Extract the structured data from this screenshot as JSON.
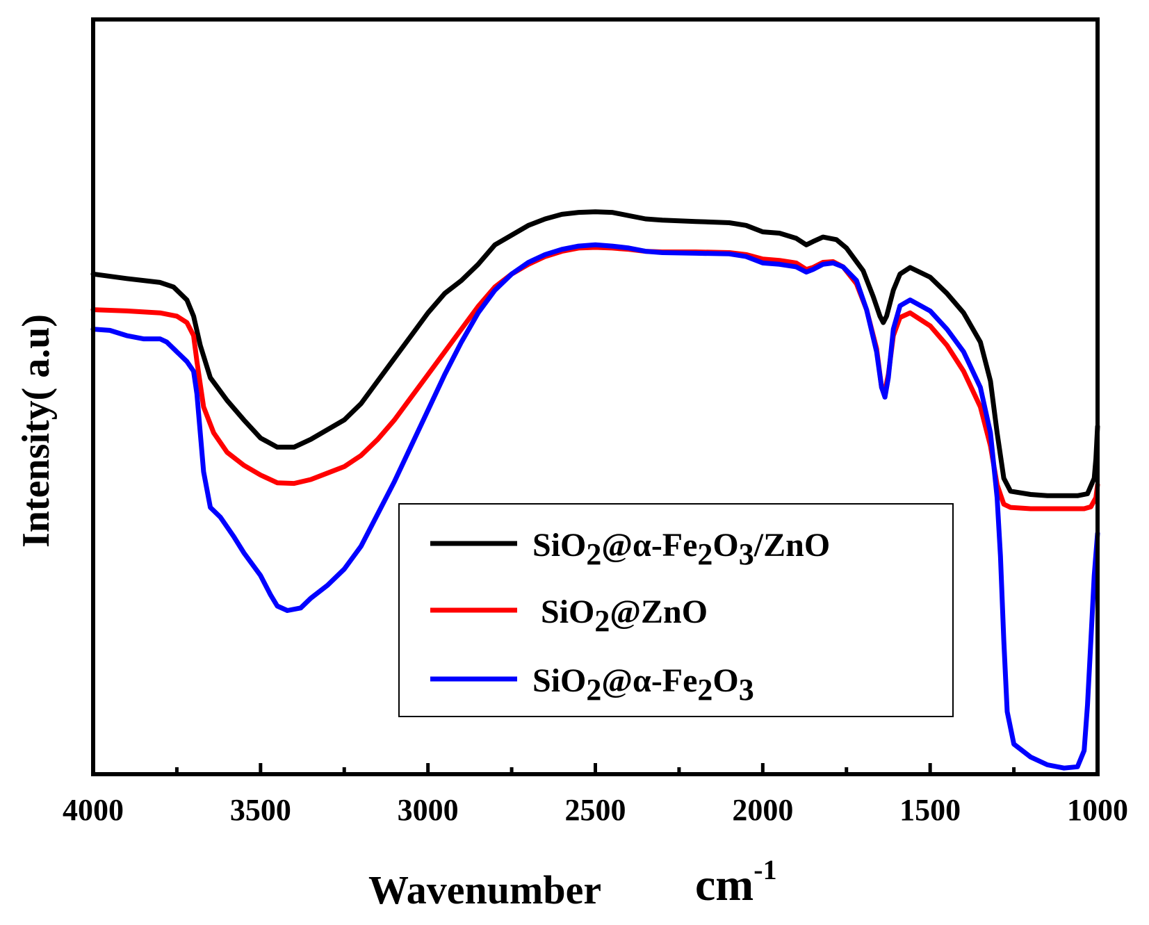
{
  "chart_data": {
    "type": "line",
    "title": "",
    "xlabel": "Wavenumber",
    "xlabel_unit_base": "cm",
    "xlabel_unit_exp": "-1",
    "ylabel": "Intensity( a.u)",
    "xlim": [
      4000,
      1000
    ],
    "ylim": [
      0,
      100
    ],
    "x_ticks": [
      "4000",
      "3500",
      "3000",
      "2500",
      "2000",
      "1500",
      "1000"
    ],
    "x_tick_values": [
      4000,
      3500,
      3000,
      2500,
      2000,
      1500,
      1000
    ],
    "x_minor_tick_values": [
      3750,
      3250,
      2750,
      2250,
      1750,
      1250
    ],
    "y_ticks": [],
    "grid": false,
    "legend_position": "lower-center",
    "series": [
      {
        "name": "SiO2@α-Fe2O3/ZnO",
        "legend_parts": [
          {
            "t": "SiO",
            "s": "n"
          },
          {
            "t": "2",
            "s": "sub"
          },
          {
            "t": "@α-Fe",
            "s": "n"
          },
          {
            "t": "2",
            "s": "sub"
          },
          {
            "t": "O",
            "s": "n"
          },
          {
            "t": "3",
            "s": "sub"
          },
          {
            "t": "/ZnO",
            "s": "n"
          }
        ],
        "color": "#000000",
        "points": [
          [
            4000,
            76.5
          ],
          [
            3900,
            75.8
          ],
          [
            3800,
            75.2
          ],
          [
            3760,
            74.5
          ],
          [
            3720,
            72.5
          ],
          [
            3700,
            70
          ],
          [
            3680,
            65.5
          ],
          [
            3650,
            60.5
          ],
          [
            3600,
            57
          ],
          [
            3550,
            54
          ],
          [
            3500,
            51.2
          ],
          [
            3450,
            49.8
          ],
          [
            3400,
            49.8
          ],
          [
            3350,
            51
          ],
          [
            3300,
            52.5
          ],
          [
            3250,
            54
          ],
          [
            3200,
            56.5
          ],
          [
            3150,
            60
          ],
          [
            3100,
            63.5
          ],
          [
            3050,
            67
          ],
          [
            3000,
            70.5
          ],
          [
            2950,
            73.5
          ],
          [
            2900,
            75.5
          ],
          [
            2850,
            78
          ],
          [
            2800,
            81
          ],
          [
            2750,
            82.5
          ],
          [
            2700,
            84
          ],
          [
            2650,
            85
          ],
          [
            2600,
            85.7
          ],
          [
            2550,
            86
          ],
          [
            2500,
            86.1
          ],
          [
            2450,
            86
          ],
          [
            2400,
            85.5
          ],
          [
            2350,
            85
          ],
          [
            2300,
            84.8
          ],
          [
            2200,
            84.6
          ],
          [
            2100,
            84.4
          ],
          [
            2050,
            84
          ],
          [
            2000,
            83
          ],
          [
            1950,
            82.8
          ],
          [
            1900,
            82
          ],
          [
            1870,
            81
          ],
          [
            1850,
            81.5
          ],
          [
            1820,
            82.2
          ],
          [
            1780,
            81.8
          ],
          [
            1750,
            80.5
          ],
          [
            1700,
            77
          ],
          [
            1670,
            73
          ],
          [
            1650,
            70
          ],
          [
            1640,
            69
          ],
          [
            1630,
            70
          ],
          [
            1610,
            74
          ],
          [
            1590,
            76.5
          ],
          [
            1560,
            77.5
          ],
          [
            1500,
            76
          ],
          [
            1450,
            73.5
          ],
          [
            1400,
            70.5
          ],
          [
            1350,
            66
          ],
          [
            1320,
            60
          ],
          [
            1300,
            52
          ],
          [
            1280,
            45
          ],
          [
            1260,
            43
          ],
          [
            1200,
            42.5
          ],
          [
            1150,
            42.3
          ],
          [
            1100,
            42.3
          ],
          [
            1060,
            42.3
          ],
          [
            1030,
            42.6
          ],
          [
            1010,
            45
          ],
          [
            1005,
            48
          ],
          [
            1000,
            53
          ]
        ]
      },
      {
        "name": "SiO2@ZnO",
        "legend_parts": [
          {
            "t": " SiO",
            "s": "n"
          },
          {
            "t": "2",
            "s": "sub"
          },
          {
            "t": "@ZnO",
            "s": "n"
          }
        ],
        "color": "#ff0000",
        "points": [
          [
            4000,
            71
          ],
          [
            3900,
            70.8
          ],
          [
            3800,
            70.5
          ],
          [
            3750,
            70
          ],
          [
            3720,
            69
          ],
          [
            3700,
            67
          ],
          [
            3690,
            63
          ],
          [
            3670,
            56
          ],
          [
            3640,
            52
          ],
          [
            3600,
            49
          ],
          [
            3550,
            47
          ],
          [
            3500,
            45.5
          ],
          [
            3450,
            44.3
          ],
          [
            3400,
            44.2
          ],
          [
            3350,
            44.8
          ],
          [
            3300,
            45.8
          ],
          [
            3250,
            46.8
          ],
          [
            3200,
            48.5
          ],
          [
            3150,
            51
          ],
          [
            3100,
            54
          ],
          [
            3050,
            57.5
          ],
          [
            3000,
            61
          ],
          [
            2950,
            64.5
          ],
          [
            2900,
            68
          ],
          [
            2850,
            71.5
          ],
          [
            2800,
            74.5
          ],
          [
            2750,
            76.5
          ],
          [
            2700,
            78
          ],
          [
            2650,
            79.2
          ],
          [
            2600,
            80
          ],
          [
            2550,
            80.5
          ],
          [
            2500,
            80.6
          ],
          [
            2450,
            80.5
          ],
          [
            2400,
            80.3
          ],
          [
            2350,
            80
          ],
          [
            2300,
            79.9
          ],
          [
            2200,
            79.9
          ],
          [
            2100,
            79.8
          ],
          [
            2050,
            79.5
          ],
          [
            2000,
            78.8
          ],
          [
            1950,
            78.6
          ],
          [
            1900,
            78.2
          ],
          [
            1870,
            77.2
          ],
          [
            1850,
            77.5
          ],
          [
            1820,
            78.3
          ],
          [
            1790,
            78.4
          ],
          [
            1760,
            77.6
          ],
          [
            1720,
            75
          ],
          [
            1690,
            71
          ],
          [
            1660,
            65
          ],
          [
            1645,
            59
          ],
          [
            1635,
            58.5
          ],
          [
            1625,
            61
          ],
          [
            1610,
            67
          ],
          [
            1590,
            69.8
          ],
          [
            1560,
            70.5
          ],
          [
            1500,
            68.5
          ],
          [
            1450,
            65.5
          ],
          [
            1400,
            61.5
          ],
          [
            1350,
            56
          ],
          [
            1320,
            50
          ],
          [
            1300,
            44
          ],
          [
            1280,
            41
          ],
          [
            1260,
            40.5
          ],
          [
            1200,
            40.3
          ],
          [
            1100,
            40.3
          ],
          [
            1040,
            40.3
          ],
          [
            1020,
            40.6
          ],
          [
            1005,
            42
          ],
          [
            1000,
            44
          ]
        ]
      },
      {
        "name": "SiO2@α-Fe2O3",
        "legend_parts": [
          {
            "t": "SiO",
            "s": "n"
          },
          {
            "t": "2",
            "s": "sub"
          },
          {
            "t": "@α-Fe",
            "s": "n"
          },
          {
            "t": "2",
            "s": "sub"
          },
          {
            "t": "O",
            "s": "n"
          },
          {
            "t": "3",
            "s": "sub"
          }
        ],
        "color": "#0000ff",
        "points": [
          [
            4000,
            68
          ],
          [
            3950,
            67.8
          ],
          [
            3900,
            67
          ],
          [
            3850,
            66.5
          ],
          [
            3800,
            66.5
          ],
          [
            3780,
            66
          ],
          [
            3750,
            64.5
          ],
          [
            3720,
            63
          ],
          [
            3700,
            61.5
          ],
          [
            3690,
            58
          ],
          [
            3680,
            52
          ],
          [
            3670,
            46
          ],
          [
            3650,
            40.5
          ],
          [
            3620,
            39
          ],
          [
            3580,
            36
          ],
          [
            3550,
            33.5
          ],
          [
            3500,
            30
          ],
          [
            3470,
            27
          ],
          [
            3450,
            25.3
          ],
          [
            3420,
            24.6
          ],
          [
            3380,
            25
          ],
          [
            3350,
            26.5
          ],
          [
            3300,
            28.5
          ],
          [
            3250,
            31
          ],
          [
            3200,
            34.5
          ],
          [
            3150,
            39.5
          ],
          [
            3100,
            44.5
          ],
          [
            3050,
            50
          ],
          [
            3000,
            55.5
          ],
          [
            2950,
            61
          ],
          [
            2900,
            66
          ],
          [
            2850,
            70.5
          ],
          [
            2800,
            74
          ],
          [
            2750,
            76.5
          ],
          [
            2700,
            78.3
          ],
          [
            2650,
            79.5
          ],
          [
            2600,
            80.3
          ],
          [
            2550,
            80.8
          ],
          [
            2500,
            81
          ],
          [
            2450,
            80.8
          ],
          [
            2400,
            80.5
          ],
          [
            2350,
            80
          ],
          [
            2300,
            79.8
          ],
          [
            2200,
            79.7
          ],
          [
            2100,
            79.6
          ],
          [
            2050,
            79.2
          ],
          [
            2000,
            78.2
          ],
          [
            1950,
            78
          ],
          [
            1900,
            77.6
          ],
          [
            1870,
            76.8
          ],
          [
            1850,
            77.2
          ],
          [
            1820,
            78
          ],
          [
            1790,
            78.2
          ],
          [
            1760,
            77.6
          ],
          [
            1720,
            75.5
          ],
          [
            1690,
            71
          ],
          [
            1660,
            64.5
          ],
          [
            1645,
            59
          ],
          [
            1635,
            57.5
          ],
          [
            1625,
            60.5
          ],
          [
            1610,
            68
          ],
          [
            1590,
            71.6
          ],
          [
            1560,
            72.5
          ],
          [
            1500,
            70.8
          ],
          [
            1450,
            68
          ],
          [
            1400,
            64.5
          ],
          [
            1350,
            59
          ],
          [
            1320,
            52
          ],
          [
            1300,
            42
          ],
          [
            1290,
            33
          ],
          [
            1280,
            20
          ],
          [
            1270,
            9
          ],
          [
            1250,
            4
          ],
          [
            1200,
            2
          ],
          [
            1150,
            0.8
          ],
          [
            1100,
            0.3
          ],
          [
            1060,
            0.5
          ],
          [
            1040,
            3
          ],
          [
            1030,
            10
          ],
          [
            1020,
            20
          ],
          [
            1010,
            30
          ],
          [
            1000,
            36.5
          ]
        ]
      }
    ]
  }
}
